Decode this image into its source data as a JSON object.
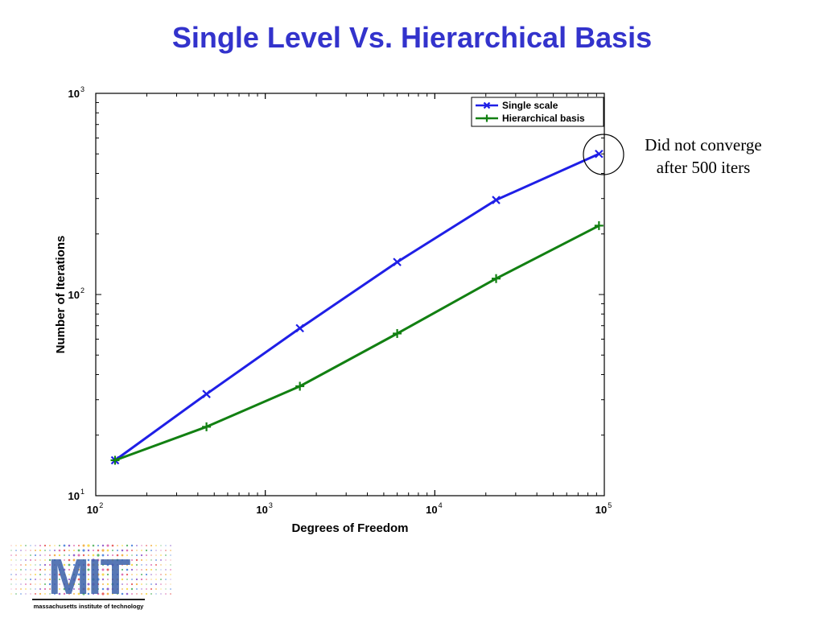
{
  "slide": {
    "title": "Single Level Vs. Hierarchical Basis",
    "annotation_line1": "Did not converge",
    "annotation_line2": "after 500 iters",
    "logo_text": "MIT",
    "logo_subtext": "massachusetts institute of technology"
  },
  "chart_data": {
    "type": "line",
    "title": "",
    "xlabel": "Degrees of Freedom",
    "ylabel": "Number of Iterations",
    "xscale": "log",
    "yscale": "log",
    "xlim": [
      100,
      100000
    ],
    "ylim": [
      10,
      1000
    ],
    "x_ticks": [
      {
        "base": "10",
        "exp": "2",
        "value": 100
      },
      {
        "base": "10",
        "exp": "3",
        "value": 1000
      },
      {
        "base": "10",
        "exp": "4",
        "value": 10000
      },
      {
        "base": "10",
        "exp": "5",
        "value": 100000
      }
    ],
    "y_ticks": [
      {
        "base": "10",
        "exp": "1",
        "value": 10
      },
      {
        "base": "10",
        "exp": "2",
        "value": 100
      },
      {
        "base": "10",
        "exp": "3",
        "value": 1000
      }
    ],
    "grid": false,
    "legend_position": "top-right",
    "series": [
      {
        "name": "Single scale",
        "color": "#1f1fe6",
        "marker": "x",
        "x": [
          130,
          450,
          1600,
          6000,
          23000,
          93000
        ],
        "y": [
          15,
          32,
          68,
          145,
          295,
          500
        ]
      },
      {
        "name": "Hierarchical basis",
        "color": "#128012",
        "marker": "+",
        "x": [
          130,
          450,
          1600,
          6000,
          23000,
          93000
        ],
        "y": [
          15,
          22,
          35,
          64,
          120,
          220
        ]
      }
    ]
  }
}
